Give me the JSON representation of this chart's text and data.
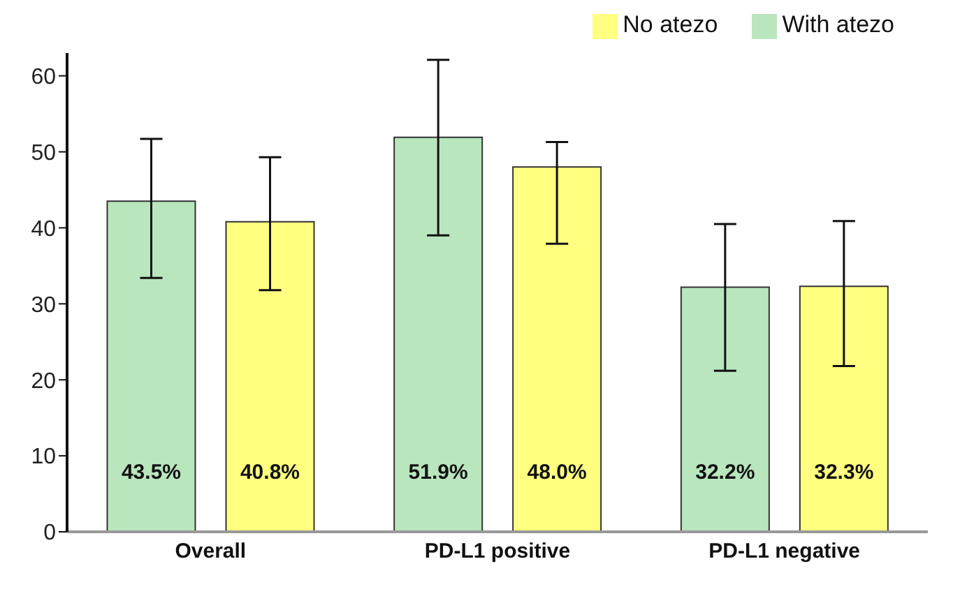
{
  "chart_data": {
    "type": "bar",
    "categories": [
      "Overall",
      "PD-L1 positive",
      "PD-L1 negative"
    ],
    "series": [
      {
        "name": "With atezo",
        "color": "#b9e6bd",
        "values": [
          43.5,
          51.9,
          32.2
        ],
        "value_labels": [
          "43.5%",
          "51.9%",
          "32.2%"
        ],
        "errors": [
          [
            33.4,
            51.7
          ],
          [
            39.0,
            62.1
          ],
          [
            21.2,
            40.5
          ]
        ]
      },
      {
        "name": "No atezo",
        "color": "#ffff80",
        "values": [
          40.8,
          48.0,
          32.3
        ],
        "value_labels": [
          "40.8%",
          "48.0%",
          "32.3%"
        ],
        "errors": [
          [
            31.8,
            49.3
          ],
          [
            37.9,
            51.3
          ],
          [
            21.8,
            40.9
          ]
        ]
      }
    ],
    "ylim": [
      0,
      63
    ],
    "yticks": [
      0,
      10,
      20,
      30,
      40,
      50,
      60
    ],
    "grid": false,
    "legend": "top right"
  }
}
